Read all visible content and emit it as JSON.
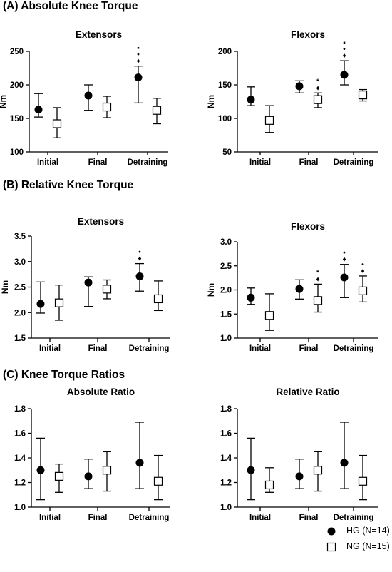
{
  "sections": {
    "a": "(A) Absolute Knee Torque",
    "b": "(B) Relative Knee Torque",
    "c": "(C) Knee Torque Ratios"
  },
  "legend": {
    "hg": "HG (N=14)",
    "ng": "NG (N=15)"
  },
  "colors": {
    "hg": "#000000",
    "ng": "#ffffff",
    "stroke": "#000000"
  },
  "chart_data": [
    {
      "type": "scatter",
      "title": "Extensors",
      "ylabel": "Nm",
      "ylim": [
        100,
        250
      ],
      "yticks": [
        "100",
        "150",
        "200",
        "250"
      ],
      "categories": [
        "Initial",
        "Final",
        "Detraining"
      ],
      "series": [
        {
          "name": "HG (N=14)",
          "marker": "filled-circle",
          "values": [
            163,
            184,
            211
          ],
          "upper": [
            187,
            200,
            228
          ],
          "lower": [
            152,
            162,
            173
          ]
        },
        {
          "name": "NG (N=15)",
          "marker": "open-square",
          "values": [
            142,
            167,
            162
          ],
          "upper": [
            166,
            183,
            180
          ],
          "lower": [
            121,
            151,
            142
          ]
        }
      ],
      "annotations": [
        {
          "category": "Detraining",
          "series": 0,
          "symbols": [
            "▪",
            "•",
            "♦"
          ]
        }
      ]
    },
    {
      "type": "scatter",
      "title": "Flexors",
      "ylabel": "Nm",
      "ylim": [
        50,
        200
      ],
      "yticks": [
        "50",
        "100",
        "150",
        "200"
      ],
      "categories": [
        "Initial",
        "Final",
        "Detraining"
      ],
      "series": [
        {
          "name": "HG (N=14)",
          "marker": "filled-circle",
          "values": [
            128,
            148,
            165
          ],
          "upper": [
            147,
            156,
            186
          ],
          "lower": [
            119,
            138,
            150
          ]
        },
        {
          "name": "NG (N=15)",
          "marker": "open-square",
          "values": [
            97,
            128,
            135
          ],
          "upper": [
            119,
            138,
            143
          ],
          "lower": [
            79,
            116,
            126
          ]
        }
      ],
      "annotations": [
        {
          "category": "Final",
          "series": 1,
          "symbols": [
            "*",
            "♦"
          ]
        },
        {
          "category": "Detraining",
          "series": 0,
          "symbols": [
            "▪",
            "•",
            "♦"
          ]
        }
      ]
    },
    {
      "type": "scatter",
      "title": "Extensors",
      "ylabel": "Nm",
      "ylim": [
        1.5,
        3.5
      ],
      "yticks": [
        "1.5",
        "2.0",
        "2.5",
        "3.0",
        "3.5"
      ],
      "categories": [
        "Initial",
        "Final",
        "Detraining"
      ],
      "series": [
        {
          "name": "HG (N=14)",
          "marker": "filled-circle",
          "values": [
            2.17,
            2.59,
            2.71
          ],
          "upper": [
            2.6,
            2.7,
            2.96
          ],
          "lower": [
            1.99,
            2.12,
            2.42
          ]
        },
        {
          "name": "NG (N=15)",
          "marker": "open-square",
          "values": [
            2.19,
            2.46,
            2.27
          ],
          "upper": [
            2.54,
            2.64,
            2.62
          ],
          "lower": [
            1.85,
            2.27,
            2.04
          ]
        }
      ],
      "annotations": [
        {
          "category": "Detraining",
          "series": 0,
          "symbols": [
            "•",
            "♦"
          ]
        }
      ]
    },
    {
      "type": "scatter",
      "title": "Flexors",
      "ylabel": "Nm",
      "ylim": [
        1.0,
        3.0
      ],
      "yticks": [
        "1.0",
        "1.5",
        "2.0",
        "2.5",
        "3.0"
      ],
      "categories": [
        "Initial",
        "Final",
        "Detraining"
      ],
      "series": [
        {
          "name": "HG (N=14)",
          "marker": "filled-circle",
          "values": [
            1.84,
            2.02,
            2.26
          ],
          "upper": [
            2.04,
            2.21,
            2.53
          ],
          "lower": [
            1.7,
            1.81,
            1.84
          ]
        },
        {
          "name": "NG (N=15)",
          "marker": "open-square",
          "values": [
            1.47,
            1.78,
            1.98
          ],
          "upper": [
            1.92,
            2.12,
            2.29
          ],
          "lower": [
            1.16,
            1.54,
            1.75
          ]
        }
      ],
      "annotations": [
        {
          "category": "Final",
          "series": 1,
          "symbols": [
            "*",
            "♦"
          ]
        },
        {
          "category": "Detraining",
          "series": 0,
          "symbols": [
            "•",
            "♦"
          ]
        },
        {
          "category": "Detraining",
          "series": 1,
          "symbols": [
            "•",
            "♦"
          ]
        }
      ]
    },
    {
      "type": "scatter",
      "title": "Absolute Ratio",
      "ylabel": "",
      "ylim": [
        1.0,
        1.8
      ],
      "yticks": [
        "1.0",
        "1.2",
        "1.4",
        "1.6",
        "1.8"
      ],
      "categories": [
        "Initial",
        "Final",
        "Detraining"
      ],
      "series": [
        {
          "name": "HG (N=14)",
          "marker": "filled-circle",
          "values": [
            1.3,
            1.25,
            1.36
          ],
          "upper": [
            1.56,
            1.39,
            1.69
          ],
          "lower": [
            1.06,
            1.15,
            1.15
          ]
        },
        {
          "name": "NG (N=15)",
          "marker": "open-square",
          "values": [
            1.25,
            1.3,
            1.21
          ],
          "upper": [
            1.35,
            1.45,
            1.42
          ],
          "lower": [
            1.12,
            1.13,
            1.06
          ]
        }
      ],
      "annotations": []
    },
    {
      "type": "scatter",
      "title": "Relative Ratio",
      "ylabel": "",
      "ylim": [
        1.0,
        1.8
      ],
      "yticks": [
        "1.0",
        "1.2",
        "1.4",
        "1.6",
        "1.8"
      ],
      "categories": [
        "Initial",
        "Final",
        "Detraining"
      ],
      "series": [
        {
          "name": "HG (N=14)",
          "marker": "filled-circle",
          "values": [
            1.3,
            1.25,
            1.36
          ],
          "upper": [
            1.56,
            1.39,
            1.69
          ],
          "lower": [
            1.06,
            1.15,
            1.15
          ]
        },
        {
          "name": "NG (N=15)",
          "marker": "open-square",
          "values": [
            1.18,
            1.3,
            1.21
          ],
          "upper": [
            1.32,
            1.45,
            1.42
          ],
          "lower": [
            1.12,
            1.13,
            1.06
          ]
        }
      ],
      "annotations": []
    }
  ]
}
